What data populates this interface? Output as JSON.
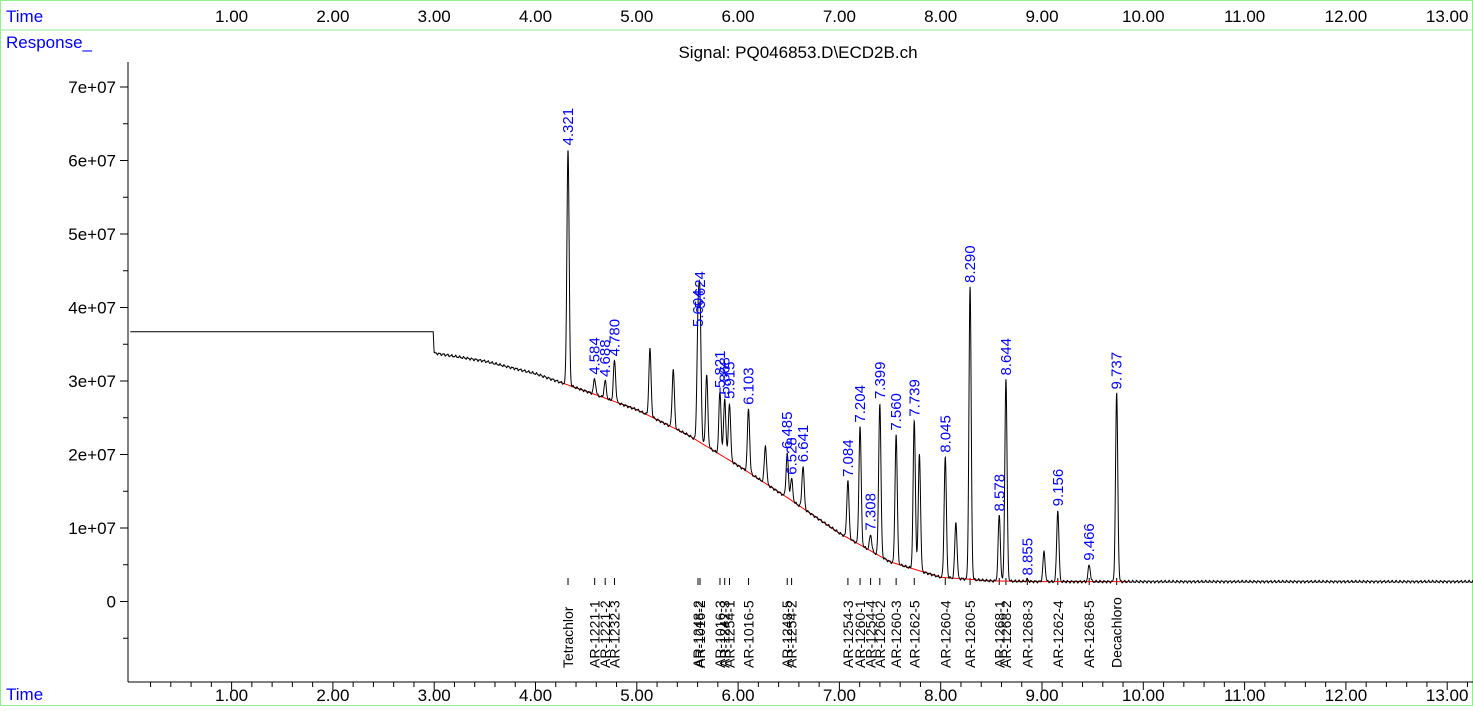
{
  "header": {
    "time_label": "Time",
    "response_label": "Response_",
    "signal_title": "Signal: PQ046853.D\\ECD2B.ch"
  },
  "footer": {
    "time_label": "Time"
  },
  "colors": {
    "axis_labels": "#0000ff",
    "trace": "#000000",
    "baseline": "#ff0000",
    "peak_labels": "#0000ff",
    "compound_labels": "#000000",
    "frame": "#90ee90"
  },
  "chart_data": {
    "type": "line",
    "title": "Signal: PQ046853.D\\ECD2B.ch",
    "xlabel": "Time",
    "ylabel": "Response_",
    "xlim": [
      0.0,
      13.35
    ],
    "ylim": [
      -8700000,
      74000000
    ],
    "x_ticks": [
      1.0,
      2.0,
      3.0,
      4.0,
      5.0,
      6.0,
      7.0,
      8.0,
      9.0,
      10.0,
      11.0,
      12.0,
      13.0
    ],
    "x_tick_labels": [
      "1.00",
      "2.00",
      "3.00",
      "4.00",
      "5.00",
      "6.00",
      "7.00",
      "8.00",
      "9.00",
      "10.00",
      "11.00",
      "12.00",
      "13.00"
    ],
    "y_ticks": [
      0,
      10000000,
      20000000,
      30000000,
      40000000,
      50000000,
      60000000,
      70000000
    ],
    "y_tick_labels": [
      "0",
      "1e+07",
      "2e+07",
      "3e+07",
      "4e+07",
      "5e+07",
      "6e+07",
      "7e+07"
    ],
    "baseline_points": [
      {
        "x": 0.0,
        "y": 36700000
      },
      {
        "x": 2.99,
        "y": 36700000
      },
      {
        "x": 3.0,
        "y": 33800000
      },
      {
        "x": 3.5,
        "y": 32700000
      },
      {
        "x": 4.0,
        "y": 31000000
      },
      {
        "x": 4.5,
        "y": 28600000
      },
      {
        "x": 5.0,
        "y": 26100000
      },
      {
        "x": 5.5,
        "y": 22700000
      },
      {
        "x": 6.0,
        "y": 18500000
      },
      {
        "x": 6.5,
        "y": 14000000
      },
      {
        "x": 7.0,
        "y": 9300000
      },
      {
        "x": 7.5,
        "y": 5400000
      },
      {
        "x": 8.0,
        "y": 3300000
      },
      {
        "x": 8.5,
        "y": 2800000
      },
      {
        "x": 9.0,
        "y": 2700000
      },
      {
        "x": 10.0,
        "y": 2700000
      },
      {
        "x": 11.0,
        "y": 2700000
      },
      {
        "x": 12.0,
        "y": 2700000
      },
      {
        "x": 13.35,
        "y": 2700000
      }
    ],
    "peaks": [
      {
        "rt": 4.321,
        "height": 61500000,
        "label": "4.321"
      },
      {
        "rt": 4.584,
        "height": 30300000,
        "label": "4.584"
      },
      {
        "rt": 4.688,
        "height": 30000000,
        "label": "4.688"
      },
      {
        "rt": 4.78,
        "height": 32800000,
        "label": "4.780"
      },
      {
        "rt": 5.13,
        "height": 34300000,
        "label": ""
      },
      {
        "rt": 5.36,
        "height": 31600000,
        "label": ""
      },
      {
        "rt": 5.604,
        "height": 36800000,
        "label": "5.604"
      },
      {
        "rt": 5.624,
        "height": 39300000,
        "label": "5.624"
      },
      {
        "rt": 5.69,
        "height": 30800000,
        "label": ""
      },
      {
        "rt": 5.821,
        "height": 28500000,
        "label": "5.821"
      },
      {
        "rt": 5.868,
        "height": 27600000,
        "label": "5.868"
      },
      {
        "rt": 5.915,
        "height": 27000000,
        "label": "5.915"
      },
      {
        "rt": 6.103,
        "height": 26200000,
        "label": "6.103"
      },
      {
        "rt": 6.27,
        "height": 21200000,
        "label": ""
      },
      {
        "rt": 6.485,
        "height": 20200000,
        "label": "6.485"
      },
      {
        "rt": 6.528,
        "height": 16700000,
        "label": "6.528"
      },
      {
        "rt": 6.641,
        "height": 18400000,
        "label": "6.641"
      },
      {
        "rt": 7.084,
        "height": 16400000,
        "label": "7.084"
      },
      {
        "rt": 7.204,
        "height": 23800000,
        "label": "7.204"
      },
      {
        "rt": 7.308,
        "height": 9100000,
        "label": "7.308"
      },
      {
        "rt": 7.399,
        "height": 27000000,
        "label": "7.399"
      },
      {
        "rt": 7.56,
        "height": 22700000,
        "label": "7.560"
      },
      {
        "rt": 7.739,
        "height": 24600000,
        "label": "7.739"
      },
      {
        "rt": 7.79,
        "height": 20100000,
        "label": ""
      },
      {
        "rt": 8.045,
        "height": 19700000,
        "label": "8.045"
      },
      {
        "rt": 8.15,
        "height": 10800000,
        "label": ""
      },
      {
        "rt": 8.29,
        "height": 42800000,
        "label": "8.290"
      },
      {
        "rt": 8.578,
        "height": 11700000,
        "label": "8.578"
      },
      {
        "rt": 8.644,
        "height": 30200000,
        "label": "8.644"
      },
      {
        "rt": 8.855,
        "height": 3000000,
        "label": "8.855"
      },
      {
        "rt": 9.02,
        "height": 6700000,
        "label": ""
      },
      {
        "rt": 9.156,
        "height": 12400000,
        "label": "9.156"
      },
      {
        "rt": 9.466,
        "height": 5000000,
        "label": "9.466"
      },
      {
        "rt": 9.737,
        "height": 28300000,
        "label": "9.737"
      }
    ],
    "compound_labels": [
      {
        "rt": 4.321,
        "label": "Tetrachlor"
      },
      {
        "rt": 4.584,
        "label": "AR-1221-1"
      },
      {
        "rt": 4.688,
        "label": "AR-1221-2"
      },
      {
        "rt": 4.78,
        "label": "AR-1232-3"
      },
      {
        "rt": 5.604,
        "label": "AR-1248-2"
      },
      {
        "rt": 5.624,
        "label": "AR-1016-2"
      },
      {
        "rt": 5.821,
        "label": "AR-1016-3"
      },
      {
        "rt": 5.868,
        "label": "AR-1242-3"
      },
      {
        "rt": 5.915,
        "label": "AR-1254-1"
      },
      {
        "rt": 6.103,
        "label": "AR-1016-5"
      },
      {
        "rt": 6.485,
        "label": "AR-1248-5"
      },
      {
        "rt": 6.528,
        "label": "AR-1254-2"
      },
      {
        "rt": 7.084,
        "label": "AR-1254-3"
      },
      {
        "rt": 7.204,
        "label": "AR-1260-1"
      },
      {
        "rt": 7.308,
        "label": "AR-1254-4"
      },
      {
        "rt": 7.399,
        "label": "AR-1260-2"
      },
      {
        "rt": 7.56,
        "label": "AR-1260-3"
      },
      {
        "rt": 7.739,
        "label": "AR-1262-5"
      },
      {
        "rt": 8.045,
        "label": "AR-1260-4"
      },
      {
        "rt": 8.29,
        "label": "AR-1260-5"
      },
      {
        "rt": 8.578,
        "label": "AR-1268-1"
      },
      {
        "rt": 8.644,
        "label": "AR-1268-2"
      },
      {
        "rt": 8.855,
        "label": "AR-1268-3"
      },
      {
        "rt": 9.156,
        "label": "AR-1262-4"
      },
      {
        "rt": 9.466,
        "label": "AR-1268-5"
      },
      {
        "rt": 9.737,
        "label": "Decachloro"
      }
    ],
    "grid": false,
    "legend": "none"
  }
}
